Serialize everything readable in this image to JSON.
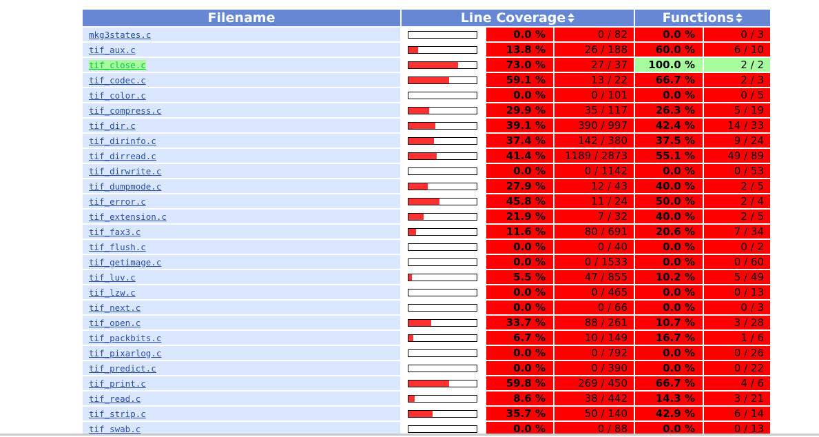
{
  "header": {
    "filename": "Filename",
    "line_coverage": "Line Coverage",
    "functions": "Functions"
  },
  "colors": {
    "header_bg": "#6688d4",
    "low": "#ff0000",
    "high": "#a7fc9d",
    "file_cell": "#dae7fe",
    "bar_fill": "#ff3030"
  },
  "rows": [
    {
      "file": "mkg3states.c",
      "line_pct": "0.0 %",
      "line_count": "0 / 82",
      "line_level": "lo",
      "func_pct": "0.0 %",
      "func_count": "0 / 3",
      "func_level": "lo",
      "bar": 0.0
    },
    {
      "file": "tif_aux.c",
      "line_pct": "13.8 %",
      "line_count": "26 / 188",
      "line_level": "lo",
      "func_pct": "60.0 %",
      "func_count": "6 / 10",
      "func_level": "lo",
      "bar": 13.8
    },
    {
      "file": "tif_close.c",
      "line_pct": "73.0 %",
      "line_count": "27 / 37",
      "line_level": "lo",
      "func_pct": "100.0 %",
      "func_count": "2 / 2",
      "func_level": "hi",
      "bar": 73.0
    },
    {
      "file": "tif_codec.c",
      "line_pct": "59.1 %",
      "line_count": "13 / 22",
      "line_level": "lo",
      "func_pct": "66.7 %",
      "func_count": "2 / 3",
      "func_level": "lo",
      "bar": 59.1
    },
    {
      "file": "tif_color.c",
      "line_pct": "0.0 %",
      "line_count": "0 / 101",
      "line_level": "lo",
      "func_pct": "0.0 %",
      "func_count": "0 / 5",
      "func_level": "lo",
      "bar": 0.0
    },
    {
      "file": "tif_compress.c",
      "line_pct": "29.9 %",
      "line_count": "35 / 117",
      "line_level": "lo",
      "func_pct": "26.3 %",
      "func_count": "5 / 19",
      "func_level": "lo",
      "bar": 29.9
    },
    {
      "file": "tif_dir.c",
      "line_pct": "39.1 %",
      "line_count": "390 / 997",
      "line_level": "lo",
      "func_pct": "42.4 %",
      "func_count": "14 / 33",
      "func_level": "lo",
      "bar": 39.1
    },
    {
      "file": "tif_dirinfo.c",
      "line_pct": "37.4 %",
      "line_count": "142 / 380",
      "line_level": "lo",
      "func_pct": "37.5 %",
      "func_count": "9 / 24",
      "func_level": "lo",
      "bar": 37.4
    },
    {
      "file": "tif_dirread.c",
      "line_pct": "41.4 %",
      "line_count": "1189 / 2873",
      "line_level": "lo",
      "func_pct": "55.1 %",
      "func_count": "49 / 89",
      "func_level": "lo",
      "bar": 41.4
    },
    {
      "file": "tif_dirwrite.c",
      "line_pct": "0.0 %",
      "line_count": "0 / 1142",
      "line_level": "lo",
      "func_pct": "0.0 %",
      "func_count": "0 / 53",
      "func_level": "lo",
      "bar": 0.0
    },
    {
      "file": "tif_dumpmode.c",
      "line_pct": "27.9 %",
      "line_count": "12 / 43",
      "line_level": "lo",
      "func_pct": "40.0 %",
      "func_count": "2 / 5",
      "func_level": "lo",
      "bar": 27.9
    },
    {
      "file": "tif_error.c",
      "line_pct": "45.8 %",
      "line_count": "11 / 24",
      "line_level": "lo",
      "func_pct": "50.0 %",
      "func_count": "2 / 4",
      "func_level": "lo",
      "bar": 45.8
    },
    {
      "file": "tif_extension.c",
      "line_pct": "21.9 %",
      "line_count": "7 / 32",
      "line_level": "lo",
      "func_pct": "40.0 %",
      "func_count": "2 / 5",
      "func_level": "lo",
      "bar": 21.9
    },
    {
      "file": "tif_fax3.c",
      "line_pct": "11.6 %",
      "line_count": "80 / 691",
      "line_level": "lo",
      "func_pct": "20.6 %",
      "func_count": "7 / 34",
      "func_level": "lo",
      "bar": 11.6
    },
    {
      "file": "tif_flush.c",
      "line_pct": "0.0 %",
      "line_count": "0 / 40",
      "line_level": "lo",
      "func_pct": "0.0 %",
      "func_count": "0 / 2",
      "func_level": "lo",
      "bar": 0.0
    },
    {
      "file": "tif_getimage.c",
      "line_pct": "0.0 %",
      "line_count": "0 / 1533",
      "line_level": "lo",
      "func_pct": "0.0 %",
      "func_count": "0 / 60",
      "func_level": "lo",
      "bar": 0.0
    },
    {
      "file": "tif_luv.c",
      "line_pct": "5.5 %",
      "line_count": "47 / 855",
      "line_level": "lo",
      "func_pct": "10.2 %",
      "func_count": "5 / 49",
      "func_level": "lo",
      "bar": 5.5
    },
    {
      "file": "tif_lzw.c",
      "line_pct": "0.0 %",
      "line_count": "0 / 465",
      "line_level": "lo",
      "func_pct": "0.0 %",
      "func_count": "0 / 13",
      "func_level": "lo",
      "bar": 0.0
    },
    {
      "file": "tif_next.c",
      "line_pct": "0.0 %",
      "line_count": "0 / 66",
      "line_level": "lo",
      "func_pct": "0.0 %",
      "func_count": "0 / 3",
      "func_level": "lo",
      "bar": 0.0
    },
    {
      "file": "tif_open.c",
      "line_pct": "33.7 %",
      "line_count": "88 / 261",
      "line_level": "lo",
      "func_pct": "10.7 %",
      "func_count": "3 / 28",
      "func_level": "lo",
      "bar": 33.7
    },
    {
      "file": "tif_packbits.c",
      "line_pct": "6.7 %",
      "line_count": "10 / 149",
      "line_level": "lo",
      "func_pct": "16.7 %",
      "func_count": "1 / 6",
      "func_level": "lo",
      "bar": 6.7
    },
    {
      "file": "tif_pixarlog.c",
      "line_pct": "0.0 %",
      "line_count": "0 / 792",
      "line_level": "lo",
      "func_pct": "0.0 %",
      "func_count": "0 / 26",
      "func_level": "lo",
      "bar": 0.0
    },
    {
      "file": "tif_predict.c",
      "line_pct": "0.0 %",
      "line_count": "0 / 390",
      "line_level": "lo",
      "func_pct": "0.0 %",
      "func_count": "0 / 22",
      "func_level": "lo",
      "bar": 0.0
    },
    {
      "file": "tif_print.c",
      "line_pct": "59.8 %",
      "line_count": "269 / 450",
      "line_level": "lo",
      "func_pct": "66.7 %",
      "func_count": "4 / 6",
      "func_level": "lo",
      "bar": 59.8
    },
    {
      "file": "tif_read.c",
      "line_pct": "8.6 %",
      "line_count": "38 / 442",
      "line_level": "lo",
      "func_pct": "14.3 %",
      "func_count": "3 / 21",
      "func_level": "lo",
      "bar": 8.6
    },
    {
      "file": "tif_strip.c",
      "line_pct": "35.7 %",
      "line_count": "50 / 140",
      "line_level": "lo",
      "func_pct": "42.9 %",
      "func_count": "6 / 14",
      "func_level": "lo",
      "bar": 35.7
    },
    {
      "file": "tif_swab.c",
      "line_pct": "0.0 %",
      "line_count": "0 / 88",
      "line_level": "lo",
      "func_pct": "0.0 %",
      "func_count": "0 / 13",
      "func_level": "lo",
      "bar": 0.0
    }
  ]
}
